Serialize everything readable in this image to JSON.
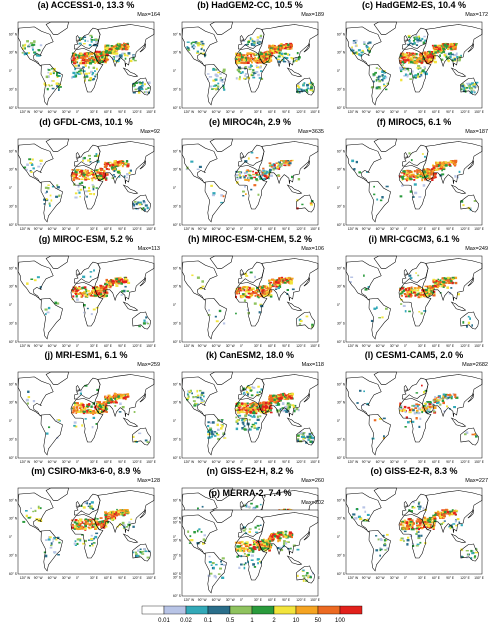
{
  "panels": [
    {
      "id": "a",
      "title": "(a) ACCESS1-0, 13.3 %",
      "max": "Max=164",
      "density": "high",
      "tropic": "heavy"
    },
    {
      "id": "b",
      "title": "(b) HadGEM2-CC, 10.5 %",
      "max": "Max=189",
      "density": "high",
      "tropic": "heavy"
    },
    {
      "id": "c",
      "title": "(c) HadGEM2-ES, 10.4 %",
      "max": "Max=172",
      "density": "high",
      "tropic": "heavy"
    },
    {
      "id": "d",
      "title": "(d) GFDL-CM3, 10.1 %",
      "max": "Max=92",
      "density": "medium",
      "tropic": "medium"
    },
    {
      "id": "e",
      "title": "(e) MIROC4h, 2.9 %",
      "max": "Max=3635",
      "density": "low",
      "tropic": "sparse"
    },
    {
      "id": "f",
      "title": "(f) MIROC5, 6.1 %",
      "max": "Max=187",
      "density": "medium",
      "tropic": "sparse"
    },
    {
      "id": "g",
      "title": "(g) MIROC-ESM, 5.2 %",
      "max": "Max=113",
      "density": "medium",
      "tropic": "sparse"
    },
    {
      "id": "h",
      "title": "(h) MIROC-ESM-CHEM, 5.2 %",
      "max": "Max=106",
      "density": "medium",
      "tropic": "sparse"
    },
    {
      "id": "i",
      "title": "(i) MRI-CGCM3, 6.1 %",
      "max": "Max=249",
      "density": "medium",
      "tropic": "sparse"
    },
    {
      "id": "j",
      "title": "(j) MRI-ESM1, 6.1 %",
      "max": "Max=259",
      "density": "medium",
      "tropic": "sparse"
    },
    {
      "id": "k",
      "title": "(k) CanESM2, 18.0 %",
      "max": "Max=118",
      "density": "high",
      "tropic": "heavy"
    },
    {
      "id": "l",
      "title": "(l) CESM1-CAM5, 2.0 %",
      "max": "Max=2682",
      "density": "low",
      "tropic": "sparse"
    },
    {
      "id": "m",
      "title": "(m) CSIRO-Mk3-6-0, 8.9 %",
      "max": "Max=128",
      "density": "medium",
      "tropic": "medium"
    },
    {
      "id": "n",
      "title": "(n) GISS-E2-H, 8.2 %",
      "max": "Max=260",
      "density": "medium",
      "tropic": "medium"
    },
    {
      "id": "o",
      "title": "(o) GISS-E2-R, 8.3 %",
      "max": "Max=227",
      "density": "medium",
      "tropic": "medium"
    },
    {
      "id": "p",
      "title": "(p) MERRA-2, 7.4 %",
      "max": "Max=202",
      "density": "medium",
      "tropic": "medium"
    }
  ],
  "lat_labels": [
    "60° N",
    "30° N",
    "0°",
    "30° S",
    "60° S"
  ],
  "lon_labels": [
    "120° W",
    "90° W",
    "60° W",
    "30° W",
    "0°",
    "30° E",
    "60° E",
    "90° E",
    "120° E",
    "150° E"
  ],
  "legend": {
    "colors": [
      "#ffffff",
      "#b8c4e6",
      "#33a9b8",
      "#2a6e8a",
      "#8fc35f",
      "#2a9b3c",
      "#f2e43c",
      "#f5a422",
      "#ec6a22",
      "#e2211c"
    ],
    "tick_labels": [
      "0.01",
      "0.02",
      "0.1",
      "0.5",
      "1",
      "2",
      "10",
      "50",
      "100"
    ]
  }
}
